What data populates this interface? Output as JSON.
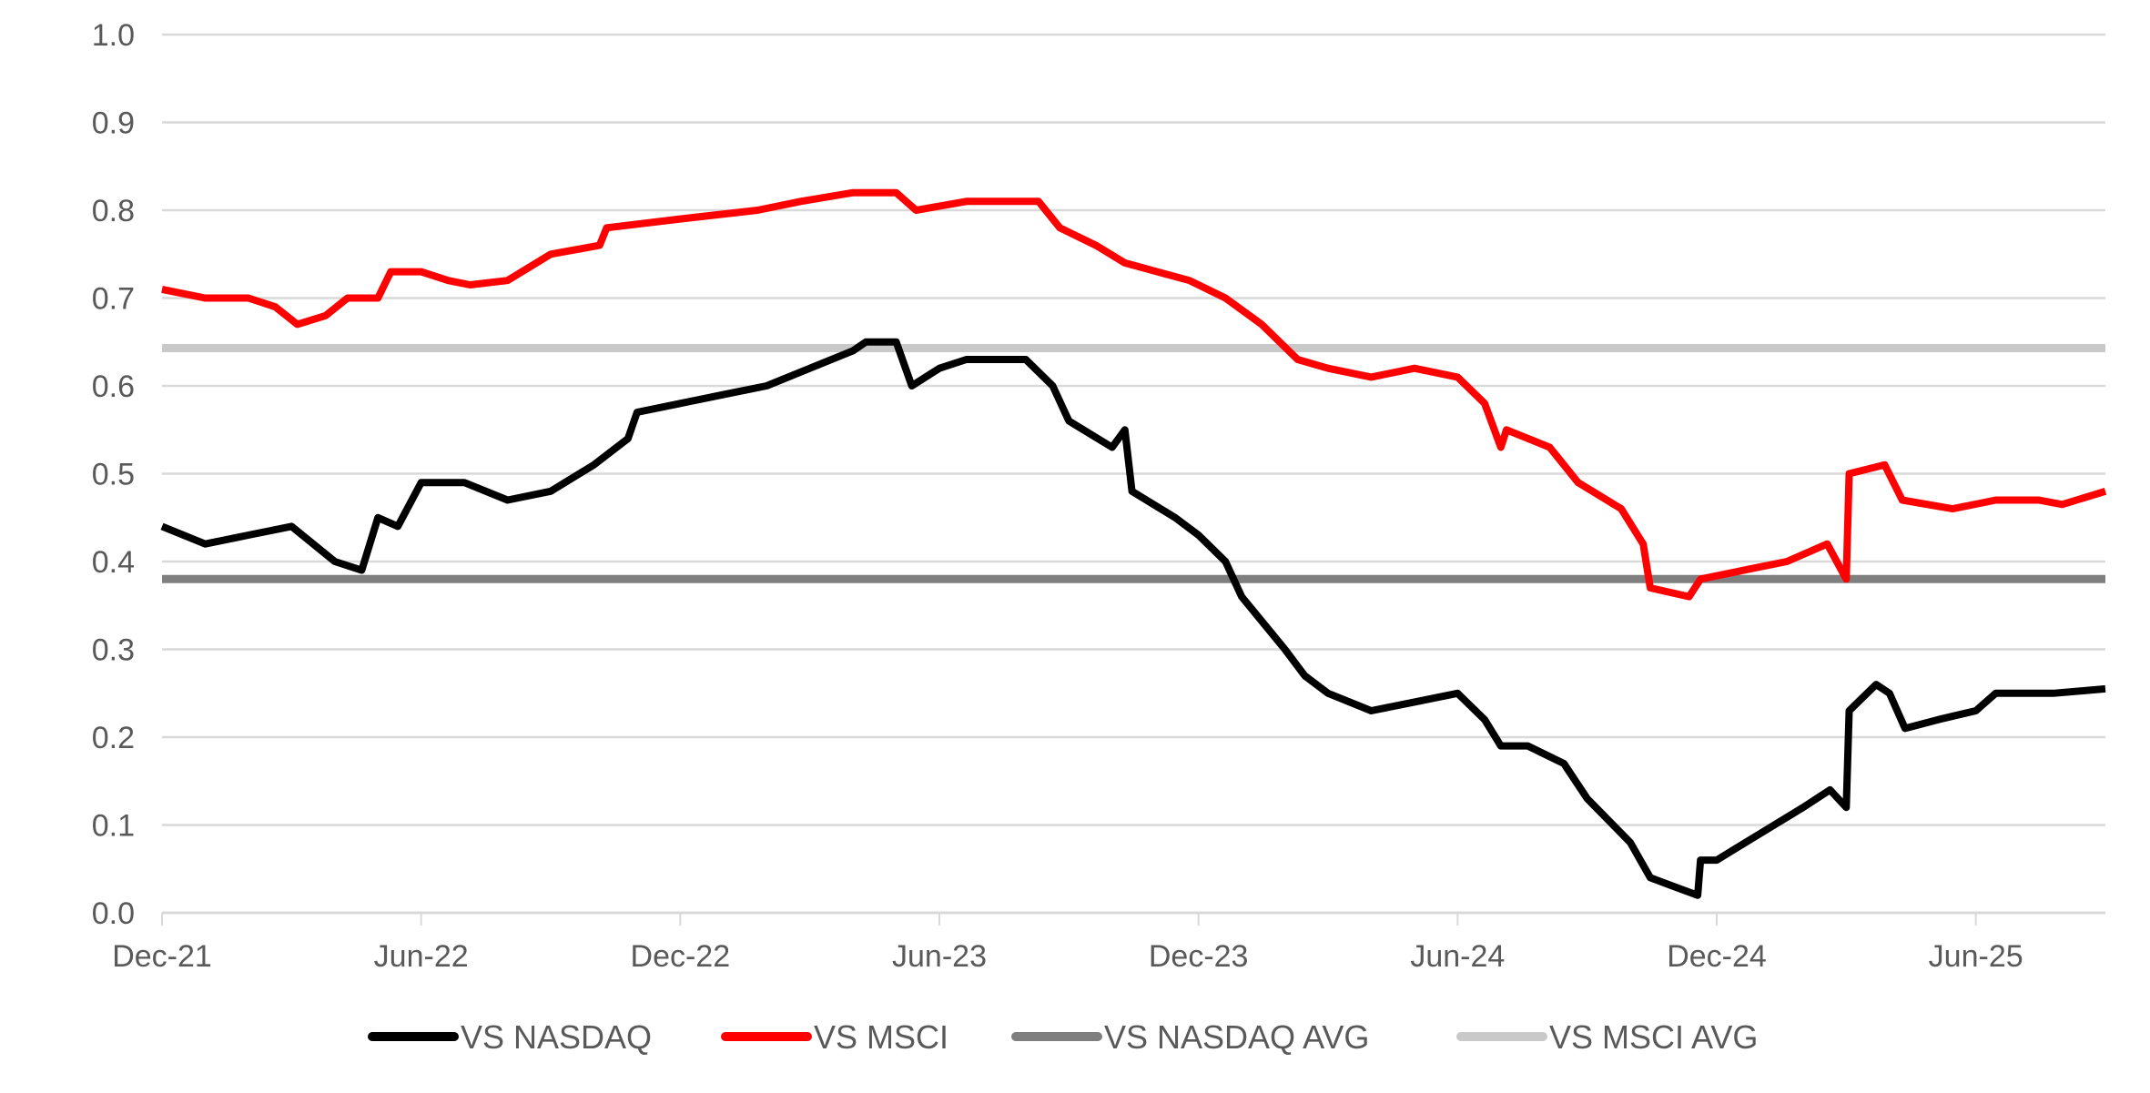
{
  "chart_data": {
    "type": "line",
    "title": "",
    "xlabel": "",
    "ylabel": "",
    "ylim": [
      0,
      1.0
    ],
    "yticks": [
      "0.0",
      "0.1",
      "0.2",
      "0.3",
      "0.4",
      "0.5",
      "0.6",
      "0.7",
      "0.8",
      "0.9",
      "1.0"
    ],
    "xlim": [
      "2021-12-01",
      "2025-09-01"
    ],
    "xticks": [
      {
        "date": "2021-12-01",
        "label": "Dec-21"
      },
      {
        "date": "2022-06-01",
        "label": "Jun-22"
      },
      {
        "date": "2022-12-01",
        "label": "Dec-22"
      },
      {
        "date": "2023-06-01",
        "label": "Jun-23"
      },
      {
        "date": "2023-12-01",
        "label": "Dec-23"
      },
      {
        "date": "2024-06-01",
        "label": "Jun-24"
      },
      {
        "date": "2024-12-01",
        "label": "Dec-24"
      },
      {
        "date": "2025-06-01",
        "label": "Jun-25"
      }
    ],
    "grid": true,
    "legend_position": "bottom",
    "series": [
      {
        "name": "VS NASDAQ",
        "color": "#000000",
        "points": [
          [
            "2021-12-01",
            0.44
          ],
          [
            "2022-01-01",
            0.42
          ],
          [
            "2022-02-01",
            0.43
          ],
          [
            "2022-03-01",
            0.44
          ],
          [
            "2022-04-01",
            0.4
          ],
          [
            "2022-04-20",
            0.39
          ],
          [
            "2022-05-01",
            0.45
          ],
          [
            "2022-05-15",
            0.44
          ],
          [
            "2022-06-01",
            0.49
          ],
          [
            "2022-07-01",
            0.49
          ],
          [
            "2022-08-01",
            0.47
          ],
          [
            "2022-09-01",
            0.48
          ],
          [
            "2022-10-01",
            0.51
          ],
          [
            "2022-10-25",
            0.54
          ],
          [
            "2022-11-01",
            0.57
          ],
          [
            "2022-12-01",
            0.58
          ],
          [
            "2023-01-01",
            0.59
          ],
          [
            "2023-02-01",
            0.6
          ],
          [
            "2023-03-01",
            0.62
          ],
          [
            "2023-04-01",
            0.64
          ],
          [
            "2023-04-10",
            0.65
          ],
          [
            "2023-05-01",
            0.65
          ],
          [
            "2023-05-12",
            0.6
          ],
          [
            "2023-06-01",
            0.62
          ],
          [
            "2023-06-20",
            0.63
          ],
          [
            "2023-08-01",
            0.63
          ],
          [
            "2023-08-20",
            0.6
          ],
          [
            "2023-09-01",
            0.56
          ],
          [
            "2023-10-01",
            0.53
          ],
          [
            "2023-10-10",
            0.55
          ],
          [
            "2023-10-15",
            0.48
          ],
          [
            "2023-11-15",
            0.45
          ],
          [
            "2023-12-01",
            0.43
          ],
          [
            "2023-12-20",
            0.4
          ],
          [
            "2024-01-01",
            0.36
          ],
          [
            "2024-02-01",
            0.3
          ],
          [
            "2024-02-15",
            0.27
          ],
          [
            "2024-03-01",
            0.25
          ],
          [
            "2024-04-01",
            0.23
          ],
          [
            "2024-05-01",
            0.24
          ],
          [
            "2024-06-01",
            0.25
          ],
          [
            "2024-06-20",
            0.22
          ],
          [
            "2024-07-01",
            0.19
          ],
          [
            "2024-07-20",
            0.19
          ],
          [
            "2024-08-15",
            0.17
          ],
          [
            "2024-09-01",
            0.13
          ],
          [
            "2024-10-01",
            0.08
          ],
          [
            "2024-10-15",
            0.04
          ],
          [
            "2024-11-01",
            0.03
          ],
          [
            "2024-11-18",
            0.02
          ],
          [
            "2024-11-20",
            0.06
          ],
          [
            "2024-12-01",
            0.06
          ],
          [
            "2025-01-01",
            0.09
          ],
          [
            "2025-02-01",
            0.12
          ],
          [
            "2025-02-20",
            0.14
          ],
          [
            "2025-03-01",
            0.12
          ],
          [
            "2025-03-03",
            0.23
          ],
          [
            "2025-03-22",
            0.26
          ],
          [
            "2025-04-01",
            0.25
          ],
          [
            "2025-04-12",
            0.21
          ],
          [
            "2025-05-05",
            0.22
          ],
          [
            "2025-06-01",
            0.23
          ],
          [
            "2025-06-15",
            0.25
          ],
          [
            "2025-07-25",
            0.25
          ],
          [
            "2025-09-01",
            0.255
          ]
        ]
      },
      {
        "name": "VS MSCI",
        "color": "#ff0000",
        "points": [
          [
            "2021-12-01",
            0.71
          ],
          [
            "2022-01-01",
            0.7
          ],
          [
            "2022-02-01",
            0.7
          ],
          [
            "2022-02-20",
            0.69
          ],
          [
            "2022-03-05",
            0.67
          ],
          [
            "2022-03-25",
            0.68
          ],
          [
            "2022-04-10",
            0.7
          ],
          [
            "2022-05-01",
            0.7
          ],
          [
            "2022-05-10",
            0.73
          ],
          [
            "2022-06-01",
            0.73
          ],
          [
            "2022-06-20",
            0.72
          ],
          [
            "2022-07-05",
            0.715
          ],
          [
            "2022-08-01",
            0.72
          ],
          [
            "2022-09-01",
            0.75
          ],
          [
            "2022-10-05",
            0.76
          ],
          [
            "2022-10-10",
            0.78
          ],
          [
            "2022-12-01",
            0.79
          ],
          [
            "2023-01-25",
            0.8
          ],
          [
            "2023-02-25",
            0.81
          ],
          [
            "2023-04-01",
            0.82
          ],
          [
            "2023-05-01",
            0.82
          ],
          [
            "2023-05-15",
            0.8
          ],
          [
            "2023-06-20",
            0.81
          ],
          [
            "2023-08-10",
            0.81
          ],
          [
            "2023-08-25",
            0.78
          ],
          [
            "2023-09-20",
            0.76
          ],
          [
            "2023-10-10",
            0.74
          ],
          [
            "2023-11-25",
            0.72
          ],
          [
            "2023-12-20",
            0.7
          ],
          [
            "2024-01-15",
            0.67
          ],
          [
            "2024-02-10",
            0.63
          ],
          [
            "2024-03-01",
            0.62
          ],
          [
            "2024-04-01",
            0.61
          ],
          [
            "2024-05-01",
            0.62
          ],
          [
            "2024-06-01",
            0.61
          ],
          [
            "2024-06-20",
            0.58
          ],
          [
            "2024-07-01",
            0.53
          ],
          [
            "2024-07-05",
            0.55
          ],
          [
            "2024-08-05",
            0.53
          ],
          [
            "2024-08-25",
            0.49
          ],
          [
            "2024-09-25",
            0.46
          ],
          [
            "2024-10-10",
            0.42
          ],
          [
            "2024-10-15",
            0.37
          ],
          [
            "2024-11-12",
            0.36
          ],
          [
            "2024-11-20",
            0.38
          ],
          [
            "2024-12-20",
            0.39
          ],
          [
            "2025-01-20",
            0.4
          ],
          [
            "2025-02-18",
            0.42
          ],
          [
            "2025-03-01",
            0.38
          ],
          [
            "2025-03-03",
            0.5
          ],
          [
            "2025-03-28",
            0.51
          ],
          [
            "2025-04-10",
            0.47
          ],
          [
            "2025-05-15",
            0.46
          ],
          [
            "2025-06-15",
            0.47
          ],
          [
            "2025-07-15",
            0.47
          ],
          [
            "2025-08-01",
            0.465
          ],
          [
            "2025-09-01",
            0.48
          ]
        ]
      },
      {
        "name": "VS NASDAQ AVG",
        "color": "#7f7f7f",
        "constant": 0.38
      },
      {
        "name": "VS MSCI AVG",
        "color": "#c9c9c9",
        "constant": 0.643
      }
    ]
  }
}
